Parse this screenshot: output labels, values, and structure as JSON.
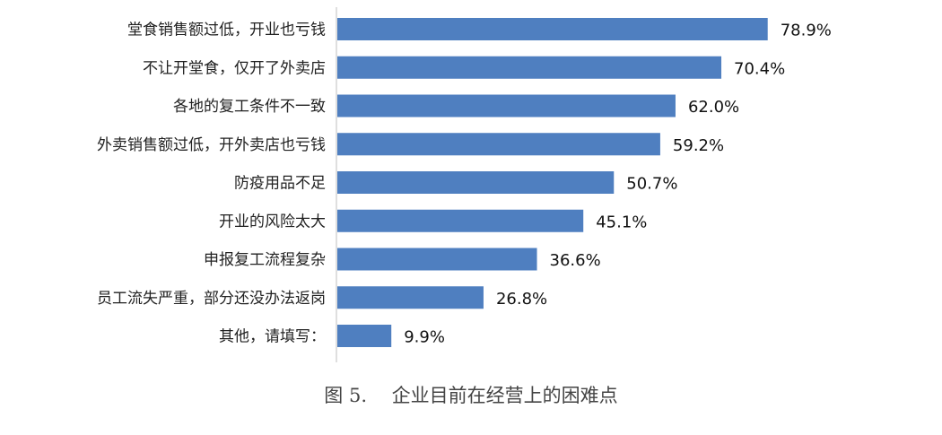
{
  "chart_data": {
    "type": "bar",
    "orientation": "horizontal",
    "categories": [
      "堂食销售额过低，开业也亏钱",
      "不让开堂食，仅开了外卖店",
      "各地的复工条件不一致",
      "外卖销售额过低，开外卖店也亏钱",
      "防疫用品不足",
      "开业的风险太大",
      "申报复工流程复杂",
      "员工流失严重，部分还没办法返岗",
      "其他，请填写："
    ],
    "values": [
      78.9,
      70.4,
      62.0,
      59.2,
      50.7,
      45.1,
      36.6,
      26.8,
      9.9
    ],
    "value_labels": [
      "78.9%",
      "70.4%",
      "62.0%",
      "59.2%",
      "50.7%",
      "45.1%",
      "36.6%",
      "26.8%",
      "9.9%"
    ],
    "xlim": [
      0,
      100
    ],
    "grid": false,
    "legend": "none",
    "bar_color": "#4f7fc0"
  },
  "caption": "图 5.　 企业目前在经营上的困难点"
}
